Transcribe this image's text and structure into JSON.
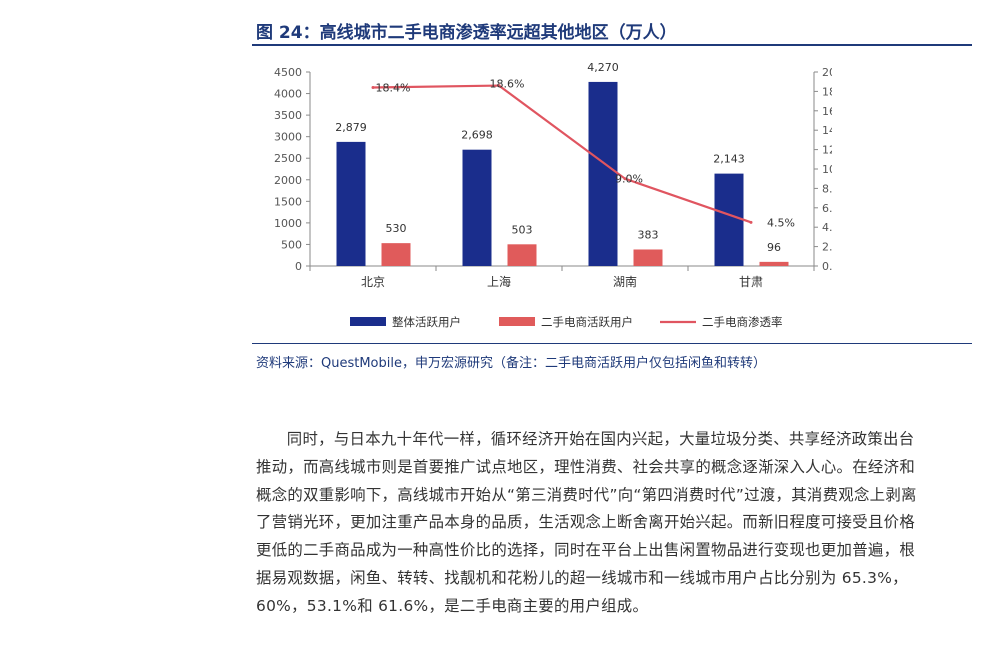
{
  "figure": {
    "title": "图 24：高线城市二手电商渗透率远超其他地区（万人）",
    "source_note": "资料来源：QuestMobile，申万宏源研究（备注：二手电商活跃用户仅包括闲鱼和转转）"
  },
  "article": {
    "paragraph": "同时，与日本九十年代一样，循环经济开始在国内兴起，大量垃圾分类、共享经济政策出台推动，而高线城市则是首要推广试点地区，理性消费、社会共享的概念逐渐深入人心。在经济和概念的双重影响下，高线城市开始从“第三消费时代”向“第四消费时代”过渡，其消费观念上剥离了营销光环，更加注重产品本身的品质，生活观念上断舍离开始兴起。而新旧程度可接受且价格更低的二手商品成为一种高性价比的选择，同时在平台上出售闲置物品进行变现也更加普遍，根据易观数据，闲鱼、转转、找靓机和花粉儿的超一线城市和一线城市用户占比分别为 65.3%，60%，53.1%和 61.6%，是二手电商主要的用户组成。"
  },
  "chart_data": {
    "type": "bar",
    "categories": [
      "北京",
      "上海",
      "湖南",
      "甘肃"
    ],
    "series": [
      {
        "name": "整体活跃用户",
        "type": "bar",
        "axis": "left",
        "color": "#1a2d8c",
        "values": [
          2879,
          2698,
          4270,
          2143
        ],
        "labels": [
          "2,879",
          "2,698",
          "4,270",
          "2,143"
        ]
      },
      {
        "name": "二手电商活跃用户",
        "type": "bar",
        "axis": "left",
        "color": "#e05b5b",
        "values": [
          530,
          503,
          383,
          96
        ],
        "labels": [
          "530",
          "503",
          "383",
          "96"
        ]
      },
      {
        "name": "二手电商渗透率",
        "type": "line",
        "axis": "right",
        "color": "#e05560",
        "values": [
          18.4,
          18.6,
          9.0,
          4.5
        ],
        "labels": [
          "18.4%",
          "18.6%",
          "9.0%",
          "4.5%"
        ]
      }
    ],
    "y_left": {
      "min": 0,
      "max": 4500,
      "step": 500,
      "ticks": [
        "0",
        "500",
        "1000",
        "1500",
        "2000",
        "2500",
        "3000",
        "3500",
        "4000",
        "4500"
      ]
    },
    "y_right": {
      "min": 0,
      "max": 20,
      "step": 2,
      "ticks": [
        "0.0%",
        "2.0%",
        "4.0%",
        "6.0%",
        "8.0%",
        "10.0%",
        "12.0%",
        "14.0%",
        "16.0%",
        "18.0%",
        "20.0%"
      ]
    },
    "grid": false,
    "legend_position": "bottom"
  }
}
